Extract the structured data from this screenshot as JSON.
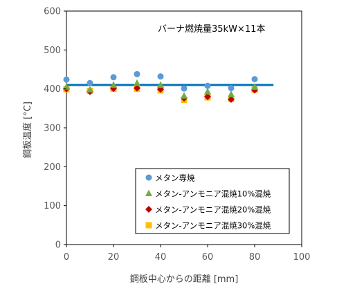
{
  "chart_data": {
    "type": "scatter",
    "xlabel": "鋼板中心からの距離 [mm]",
    "ylabel": "鋼板温度 [°C]",
    "xlim": [
      0,
      100
    ],
    "ylim": [
      0,
      600
    ],
    "x_ticks": [
      "0",
      "20",
      "40",
      "60",
      "80",
      "100"
    ],
    "y_ticks": [
      "0",
      "100",
      "200",
      "300",
      "400",
      "500",
      "600"
    ],
    "grid": false,
    "legend_position": "bottom-right",
    "annotation": "バーナ燃焼量35kW×11本",
    "series": [
      {
        "name": "メタン専焼",
        "marker": "circle",
        "color": "#5B9BD5",
        "x": [
          0,
          10,
          20,
          30,
          40,
          50,
          60,
          70,
          80
        ],
        "y": [
          424,
          415,
          430,
          438,
          432,
          401,
          408,
          402,
          425
        ]
      },
      {
        "name": "メタン-アンモニア混焼10%混焼",
        "marker": "triangle",
        "color": "#70AD47",
        "x": [
          0,
          10,
          20,
          30,
          40,
          50,
          60,
          70,
          80
        ],
        "y": [
          405,
          398,
          410,
          415,
          410,
          382,
          393,
          386,
          405
        ]
      },
      {
        "name": "メタン-アンモニア混焼20%混焼",
        "marker": "diamond",
        "color": "#C00000",
        "x": [
          0,
          10,
          20,
          30,
          40,
          50,
          60,
          70,
          80
        ],
        "y": [
          400,
          393,
          401,
          402,
          399,
          376,
          380,
          373,
          397
        ]
      },
      {
        "name": "メタン-アンモニア混焼30%混焼",
        "marker": "square",
        "color": "#FFC000",
        "x": [
          0,
          10,
          20,
          30,
          40,
          50,
          60,
          70,
          80
        ],
        "y": [
          399,
          395,
          400,
          400,
          396,
          372,
          378,
          374,
          398
        ]
      }
    ],
    "reference_line": {
      "color": "#0070C0",
      "x": [
        0,
        88
      ],
      "y": [
        410,
        410
      ]
    }
  }
}
